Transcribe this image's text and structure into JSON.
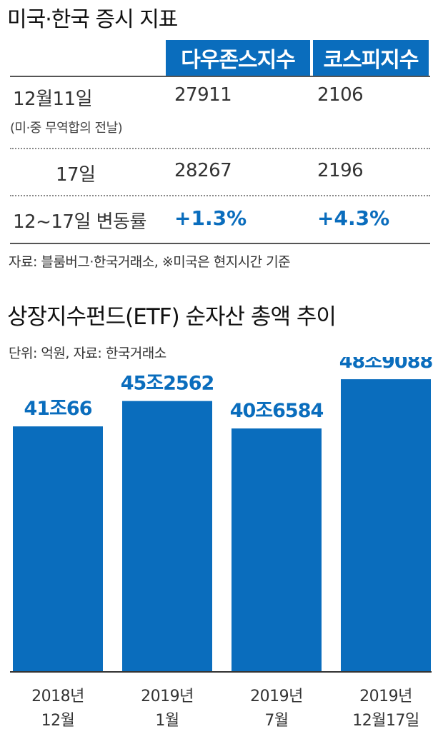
{
  "table": {
    "title": "미국·한국 증시 지표",
    "headers": [
      "다우존스지수",
      "코스피지수"
    ],
    "rows": [
      {
        "label": "12월11일",
        "sublabel": "(미·중 무역합의 전날)",
        "dow": "27911",
        "kospi": "2106"
      },
      {
        "label": "17일",
        "dow": "28267",
        "kospi": "2196"
      },
      {
        "label": "12~17일 변동률",
        "dow": "+1.3%",
        "kospi": "+4.3%"
      }
    ],
    "source": "자료: 블룸버그·한국거래소, ※미국은 현지시간 기준"
  },
  "chart_title": "상장지수펀드(ETF) 순자산 총액 추이",
  "chart_unit": "단위: 억원, 자료: 한국거래소",
  "colors": {
    "accent": "#0a6dbd"
  },
  "chart_data": {
    "type": "bar",
    "categories": [
      "2018년 12월",
      "2019년 1월",
      "2019년 7월",
      "2019년 12월17일"
    ],
    "category_lines": [
      [
        "2018년",
        "12월"
      ],
      [
        "2019년",
        "1월"
      ],
      [
        "2019년",
        "7월"
      ],
      [
        "2019년",
        "12월17일"
      ]
    ],
    "values": [
      410066,
      452562,
      406584,
      489088
    ],
    "value_labels": [
      "41조66",
      "45조2562",
      "40조6584",
      "48조9088"
    ],
    "ylim": [
      0,
      500000
    ],
    "grid": false
  }
}
